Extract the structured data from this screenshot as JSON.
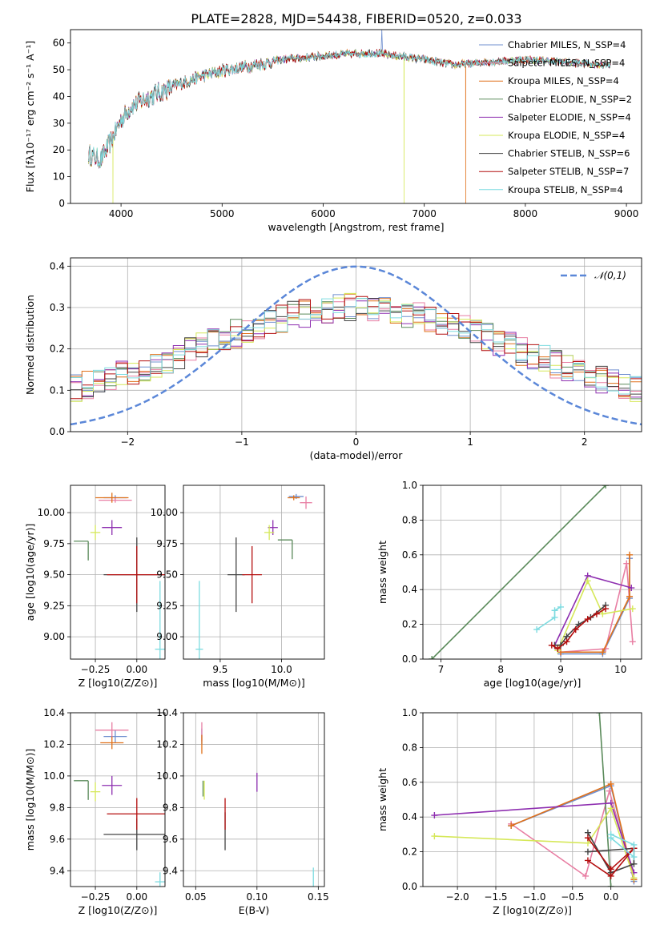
{
  "title": "PLATE=2828, MJD=54438, FIBERID=0520, z=0.033",
  "colors": {
    "chabrier_miles": "#6f8fcf",
    "salpeter_miles": "#e87ea3",
    "kroupa_miles": "#e0711a",
    "chabrier_elodie": "#5a8a5a",
    "salpeter_elodie": "#8e2fb0",
    "kroupa_elodie": "#d6e85a",
    "chabrier_stelib": "#444444",
    "salpeter_stelib": "#b40f0f",
    "kroupa_stelib": "#7ddbe0",
    "gauss": "#5b87d8",
    "grid": "#b0b0b0"
  },
  "chart_data": [
    {
      "id": "spectrum",
      "type": "line",
      "xlabel": "wavelength [Angstrom, rest frame]",
      "ylabel": "Flux [fλ10⁻¹⁷ erg cm⁻² s⁻¹ A⁻¹]",
      "xlim": [
        3500,
        9150
      ],
      "ylim": [
        0,
        65
      ],
      "xticks": [
        4000,
        5000,
        6000,
        7000,
        8000,
        9000
      ],
      "yticks": [
        0,
        10,
        20,
        30,
        40,
        50,
        60
      ],
      "grid": false,
      "legend_position": "top-right",
      "legend": [
        "Chabrier MILES, N_SSP=4",
        "Salpeter MILES, N_SSP=4",
        "Kroupa MILES, N_SSP=4",
        "Chabrier ELODIE, N_SSP=2",
        "Salpeter ELODIE, N_SSP=4",
        "Kroupa ELODIE, N_SSP=4",
        "Chabrier STELIB, N_SSP=6",
        "Salpeter STELIB, N_SSP=7",
        "Kroupa STELIB, N_SSP=4"
      ],
      "continuum": {
        "x": [
          3680,
          3800,
          3900,
          4000,
          4100,
          4300,
          4500,
          4800,
          5000,
          5300,
          5600,
          5900,
          6200,
          6500,
          6800,
          7000,
          7300,
          7600,
          8000,
          8400,
          8800
        ],
        "y": [
          19,
          17,
          24,
          32,
          37,
          41,
          44,
          48,
          50,
          52,
          54,
          55,
          56,
          56.5,
          55,
          54,
          52,
          53,
          54,
          53,
          52
        ]
      },
      "range": [
        3680,
        8850
      ],
      "dips": [
        {
          "series": "Kroupa ELODIE",
          "x": 3920,
          "to": 0
        },
        {
          "series": "Kroupa ELODIE",
          "x": 6800,
          "to": 0
        },
        {
          "series": "Kroupa MILES",
          "x": 7410,
          "to": 0
        }
      ],
      "spike": {
        "series": "Chabrier MILES",
        "x": 6580,
        "to": 65
      }
    },
    {
      "id": "residuals",
      "type": "histogram",
      "xlabel": "(data-model)/error",
      "ylabel": "Normed distribution",
      "xlim": [
        -2.5,
        2.5
      ],
      "ylim": [
        0,
        0.42
      ],
      "xticks": [
        -2,
        -1,
        0,
        1,
        2
      ],
      "yticks": [
        0.0,
        0.1,
        0.2,
        0.3,
        0.4
      ],
      "grid": true,
      "bin_width": 0.1,
      "legend_position": "top-right",
      "gauss_label": "𝒩(0,1)",
      "gauss": {
        "mu": 0,
        "sigma": 1
      }
    },
    {
      "id": "age_vs_Z",
      "type": "errorbar",
      "xlabel": "Z [log10(Z/Z⊙)]",
      "ylabel": "age  [log10(age/yr)]",
      "xlim": [
        -0.4,
        0.17
      ],
      "ylim": [
        8.82,
        10.22
      ],
      "xticks": [
        -0.25,
        0.0
      ],
      "yticks": [
        9.0,
        9.25,
        9.5,
        9.75,
        10.0
      ],
      "grid": true,
      "points": [
        {
          "series": "Chabrier MILES",
          "x": -0.13,
          "y": 10.12,
          "xerr": 0.07,
          "yerr": 0.02
        },
        {
          "series": "Salpeter MILES",
          "x": -0.13,
          "y": 10.1,
          "xerr": 0.1,
          "yerr": 0.02
        },
        {
          "series": "Kroupa MILES",
          "x": -0.15,
          "y": 10.12,
          "xerr": 0.1,
          "yerr": 0.04
        },
        {
          "series": "Chabrier ELODIE",
          "x": -0.38,
          "y": 9.77,
          "xerr": 0.0,
          "yerr": 0.0
        },
        {
          "series": "Salpeter ELODIE",
          "x": -0.15,
          "y": 9.88,
          "xerr": 0.06,
          "yerr": 0.06
        },
        {
          "series": "Kroupa ELODIE",
          "x": -0.25,
          "y": 9.84,
          "xerr": 0.03,
          "yerr": 0.06
        },
        {
          "series": "Chabrier STELIB",
          "x": 0.0,
          "y": 9.5,
          "xerr": 0.2,
          "yerr": 0.3
        },
        {
          "series": "Salpeter STELIB",
          "x": 0.0,
          "y": 9.5,
          "xerr": 0.18,
          "yerr": 0.23
        },
        {
          "series": "Kroupa STELIB",
          "x": 0.14,
          "y": 8.9,
          "xerr": 0.03,
          "yerr": 0.55
        }
      ]
    },
    {
      "id": "age_vs_mass",
      "type": "errorbar",
      "xlabel": "mass [log10(M/M⊙)]",
      "ylabel": "",
      "xlim": [
        9.2,
        10.35
      ],
      "ylim": [
        8.82,
        10.22
      ],
      "xticks": [
        9.5,
        10.0
      ],
      "yticks": [
        9.0,
        9.25,
        9.5,
        9.75,
        10.0
      ],
      "grid": true,
      "points": [
        {
          "series": "Chabrier MILES",
          "x": 10.12,
          "y": 10.13,
          "xerr": 0.06,
          "yerr": 0.02
        },
        {
          "series": "Salpeter MILES",
          "x": 10.2,
          "y": 10.08,
          "xerr": 0.05,
          "yerr": 0.05
        },
        {
          "series": "Kroupa MILES",
          "x": 10.1,
          "y": 10.12,
          "xerr": 0.05,
          "yerr": 0.02
        },
        {
          "series": "Chabrier ELODIE",
          "x": 9.97,
          "y": 9.78,
          "xerr": 0.0,
          "yerr": 0.0
        },
        {
          "series": "Salpeter ELODIE",
          "x": 9.93,
          "y": 9.88,
          "xerr": 0.04,
          "yerr": 0.06
        },
        {
          "series": "Kroupa ELODIE",
          "x": 9.9,
          "y": 9.84,
          "xerr": 0.04,
          "yerr": 0.06
        },
        {
          "series": "Chabrier STELIB",
          "x": 9.63,
          "y": 9.5,
          "xerr": 0.07,
          "yerr": 0.3
        },
        {
          "series": "Salpeter STELIB",
          "x": 9.76,
          "y": 9.5,
          "xerr": 0.08,
          "yerr": 0.23
        },
        {
          "series": "Kroupa STELIB",
          "x": 9.33,
          "y": 8.9,
          "xerr": 0.03,
          "yerr": 0.55
        }
      ]
    },
    {
      "id": "weight_vs_age",
      "type": "line",
      "xlabel": "age  [log10(age/yr)]",
      "ylabel": "mass weight",
      "xlim": [
        6.7,
        10.35
      ],
      "ylim": [
        0,
        1.0
      ],
      "xticks": [
        7,
        8,
        9,
        10
      ],
      "yticks": [
        0.0,
        0.2,
        0.4,
        0.6,
        0.8,
        1.0
      ],
      "grid": true,
      "series": [
        {
          "name": "Chabrier MILES",
          "x": [
            9.0,
            9.7,
            10.15,
            10.15
          ],
          "y": [
            0.03,
            0.03,
            0.35,
            0.58
          ]
        },
        {
          "name": "Salpeter MILES",
          "x": [
            9.0,
            9.75,
            10.1,
            10.2
          ],
          "y": [
            0.04,
            0.06,
            0.55,
            0.1
          ]
        },
        {
          "name": "Kroupa MILES",
          "x": [
            9.0,
            9.7,
            10.15,
            10.15
          ],
          "y": [
            0.04,
            0.04,
            0.36,
            0.6
          ]
        },
        {
          "name": "Chabrier ELODIE",
          "x": [
            6.85,
            9.75
          ],
          "y": [
            0.0,
            1.0
          ]
        },
        {
          "name": "Salpeter ELODIE",
          "x": [
            8.9,
            9.45,
            10.18
          ],
          "y": [
            0.08,
            0.48,
            0.41
          ]
        },
        {
          "name": "Kroupa ELODIE",
          "x": [
            8.95,
            9.45,
            9.7,
            10.2
          ],
          "y": [
            0.05,
            0.45,
            0.26,
            0.29
          ]
        },
        {
          "name": "Chabrier STELIB",
          "x": [
            8.9,
            9.0,
            9.1,
            9.3,
            9.5,
            9.75
          ],
          "y": [
            0.08,
            0.08,
            0.13,
            0.2,
            0.24,
            0.31
          ]
        },
        {
          "name": "Salpeter STELIB",
          "x": [
            8.85,
            8.95,
            9.1,
            9.25,
            9.45,
            9.6,
            9.75
          ],
          "y": [
            0.08,
            0.06,
            0.1,
            0.17,
            0.23,
            0.26,
            0.29
          ]
        },
        {
          "name": "Kroupa STELIB",
          "x": [
            8.6,
            8.9,
            8.9,
            9.0
          ],
          "y": [
            0.17,
            0.24,
            0.28,
            0.3
          ]
        }
      ]
    },
    {
      "id": "mass_vs_Z",
      "type": "errorbar",
      "xlabel": "Z [log10(Z/Z⊙)]",
      "ylabel": "mass [log10(M/M⊙)]",
      "xlim": [
        -0.4,
        0.17
      ],
      "ylim": [
        9.3,
        10.4
      ],
      "xticks": [
        -0.25,
        0.0
      ],
      "yticks": [
        9.4,
        9.6,
        9.8,
        10.0,
        10.2,
        10.4
      ],
      "grid": true,
      "points": [
        {
          "series": "Chabrier MILES",
          "x": -0.13,
          "y": 10.25,
          "xerr": 0.07,
          "yerr": 0.04
        },
        {
          "series": "Salpeter MILES",
          "x": -0.15,
          "y": 10.29,
          "xerr": 0.1,
          "yerr": 0.05
        },
        {
          "series": "Kroupa MILES",
          "x": -0.15,
          "y": 10.21,
          "xerr": 0.07,
          "yerr": 0.04
        },
        {
          "series": "Chabrier ELODIE",
          "x": -0.38,
          "y": 9.97,
          "xerr": 0.0,
          "yerr": 0.0
        },
        {
          "series": "Salpeter ELODIE",
          "x": -0.15,
          "y": 9.94,
          "xerr": 0.06,
          "yerr": 0.06
        },
        {
          "series": "Kroupa ELODIE",
          "x": -0.25,
          "y": 9.9,
          "xerr": 0.03,
          "yerr": 0.06
        },
        {
          "series": "Chabrier STELIB",
          "x": 0.0,
          "y": 9.63,
          "xerr": 0.2,
          "yerr": 0.1
        },
        {
          "series": "Salpeter STELIB",
          "x": 0.0,
          "y": 9.76,
          "xerr": 0.18,
          "yerr": 0.1
        },
        {
          "series": "Kroupa STELIB",
          "x": 0.14,
          "y": 9.33,
          "xerr": 0.03,
          "yerr": 0.06
        }
      ]
    },
    {
      "id": "mass_vs_ebv",
      "type": "errorbar",
      "xlabel": "E(B-V)",
      "ylabel": "",
      "xlim": [
        0.04,
        0.155
      ],
      "ylim": [
        9.3,
        10.4
      ],
      "xticks": [
        0.05,
        0.1,
        0.15
      ],
      "yticks": [
        9.4,
        9.6,
        9.8,
        10.0,
        10.2,
        10.4
      ],
      "grid": true,
      "points": [
        {
          "series": "Chabrier MILES",
          "x": 0.055,
          "y": 10.25,
          "xerr": 0.0,
          "yerr": 0.05
        },
        {
          "series": "Salpeter MILES",
          "x": 0.055,
          "y": 10.28,
          "xerr": 0.0,
          "yerr": 0.06
        },
        {
          "series": "Kroupa MILES",
          "x": 0.055,
          "y": 10.2,
          "xerr": 0.0,
          "yerr": 0.06
        },
        {
          "series": "Chabrier ELODIE",
          "x": 0.056,
          "y": 9.92,
          "xerr": 0.0,
          "yerr": 0.05
        },
        {
          "series": "Salpeter ELODIE",
          "x": 0.1,
          "y": 9.96,
          "xerr": 0.0,
          "yerr": 0.06
        },
        {
          "series": "Kroupa ELODIE",
          "x": 0.057,
          "y": 9.91,
          "xerr": 0.0,
          "yerr": 0.06
        },
        {
          "series": "Chabrier STELIB",
          "x": 0.074,
          "y": 9.65,
          "xerr": 0.0,
          "yerr": 0.12
        },
        {
          "series": "Salpeter STELIB",
          "x": 0.074,
          "y": 9.76,
          "xerr": 0.0,
          "yerr": 0.1
        },
        {
          "series": "Kroupa STELIB",
          "x": 0.146,
          "y": 9.36,
          "xerr": 0.0,
          "yerr": 0.06
        }
      ]
    },
    {
      "id": "weight_vs_Z",
      "type": "line",
      "xlabel": "Z [log10(Z/Z⊙)]",
      "ylabel": "mass weight",
      "xlim": [
        -2.45,
        0.4
      ],
      "ylim": [
        0,
        1.0
      ],
      "xticks": [
        -2.0,
        -1.5,
        -1.0,
        -0.5,
        0.0
      ],
      "yticks": [
        0.0,
        0.2,
        0.4,
        0.6,
        0.8,
        1.0
      ],
      "grid": true,
      "series": [
        {
          "name": "Chabrier MILES",
          "x": [
            0.3,
            0.0,
            -1.3
          ],
          "y": [
            0.03,
            0.58,
            0.35
          ]
        },
        {
          "name": "Salpeter MILES",
          "x": [
            0.3,
            -0.02,
            -0.33,
            -1.3
          ],
          "y": [
            0.04,
            0.55,
            0.06,
            0.36
          ]
        },
        {
          "name": "Kroupa MILES",
          "x": [
            0.3,
            0.0,
            -1.3
          ],
          "y": [
            0.04,
            0.59,
            0.35
          ]
        },
        {
          "name": "Chabrier ELODIE",
          "x": [
            -0.15,
            0.0
          ],
          "y": [
            1.0,
            0.0
          ]
        },
        {
          "name": "Salpeter ELODIE",
          "x": [
            -2.3,
            0.0,
            0.3
          ],
          "y": [
            0.41,
            0.48,
            0.08
          ]
        },
        {
          "name": "Kroupa ELODIE",
          "x": [
            -2.3,
            -0.3,
            0.0,
            0.3
          ],
          "y": [
            0.29,
            0.25,
            0.45,
            0.05
          ]
        },
        {
          "name": "Chabrier STELIB",
          "x": [
            -0.3,
            0.0,
            0.3,
            0.3,
            -0.3
          ],
          "y": [
            0.31,
            0.08,
            0.13,
            0.22,
            0.2
          ]
        },
        {
          "name": "Salpeter STELIB",
          "x": [
            -0.3,
            0.0,
            0.3,
            0.0,
            -0.3
          ],
          "y": [
            0.28,
            0.1,
            0.22,
            0.06,
            0.15
          ]
        },
        {
          "name": "Kroupa STELIB",
          "x": [
            0.0,
            0.3,
            0.3,
            0.0
          ],
          "y": [
            0.3,
            0.24,
            0.17,
            0.28
          ]
        }
      ]
    }
  ]
}
